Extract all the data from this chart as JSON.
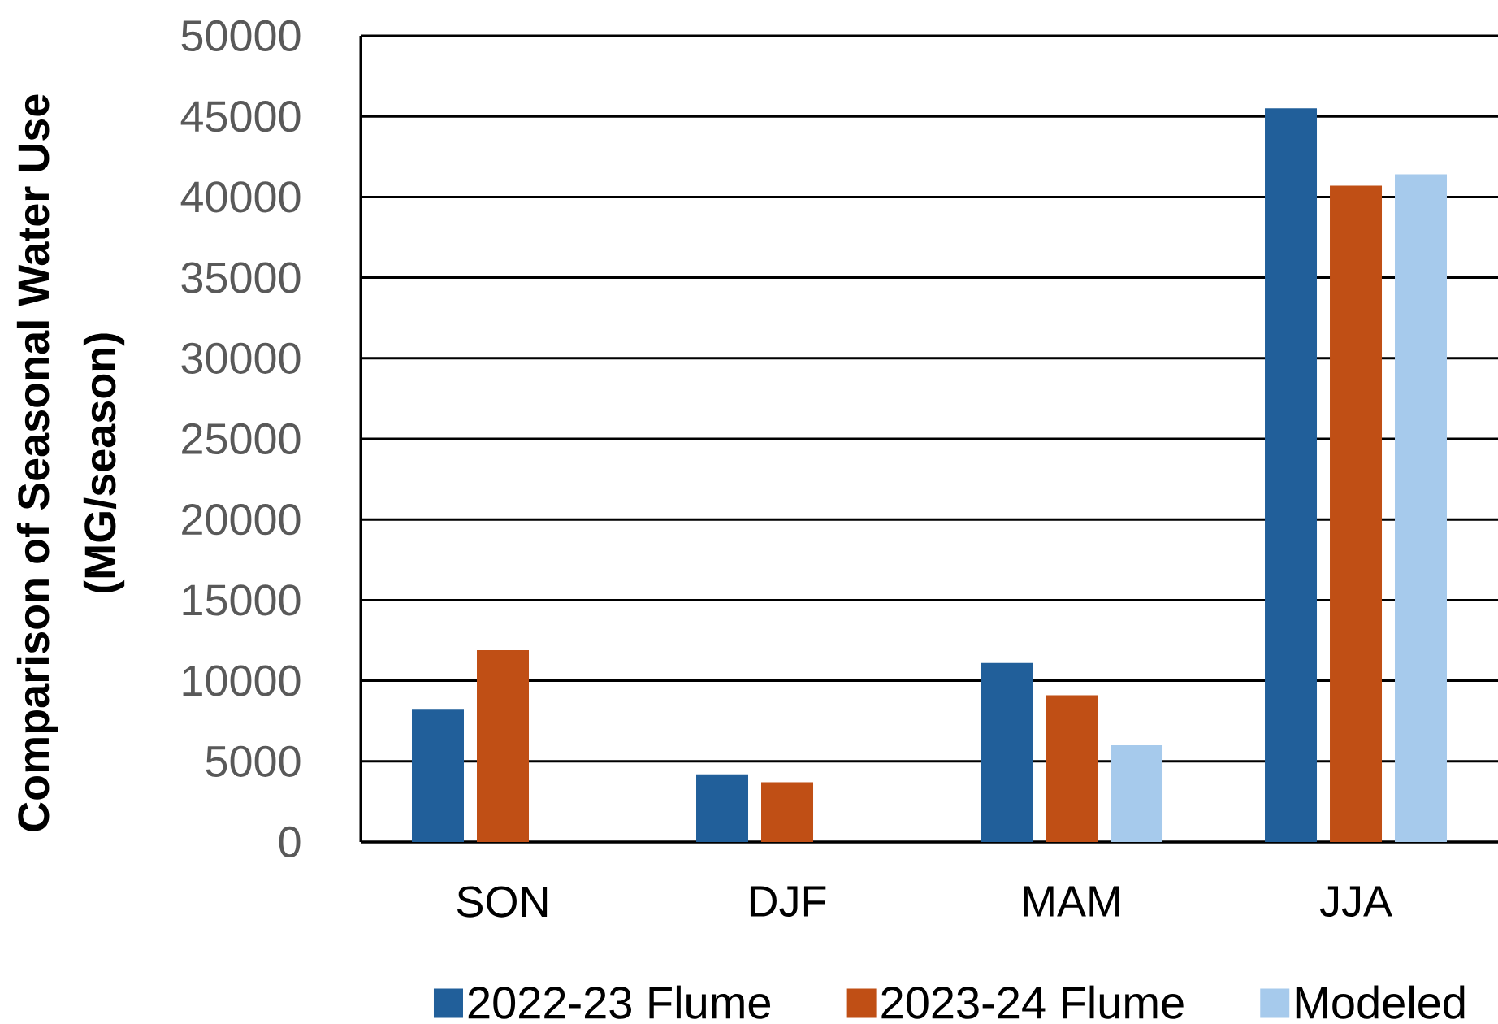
{
  "chart_data": {
    "type": "bar",
    "ylabel": "Comparison of Seasonal Water Use (MG/season)",
    "categories": [
      "SON",
      "DJF",
      "MAM",
      "JJA"
    ],
    "series": [
      {
        "name": "2022-23 Flume",
        "color": "#215f9a",
        "values": [
          8200,
          4200,
          11100,
          45500
        ]
      },
      {
        "name": "2023-24 Flume",
        "color": "#c04f15",
        "values": [
          11900,
          3700,
          9100,
          40700
        ]
      },
      {
        "name": "Modeled",
        "color": "#a6caec",
        "values": [
          null,
          null,
          6000,
          41400
        ]
      }
    ],
    "ylim": [
      0,
      50000
    ],
    "yticks": [
      0,
      5000,
      10000,
      15000,
      20000,
      25000,
      30000,
      35000,
      40000,
      45000,
      50000
    ],
    "grid": "y",
    "legend": "bottom"
  }
}
